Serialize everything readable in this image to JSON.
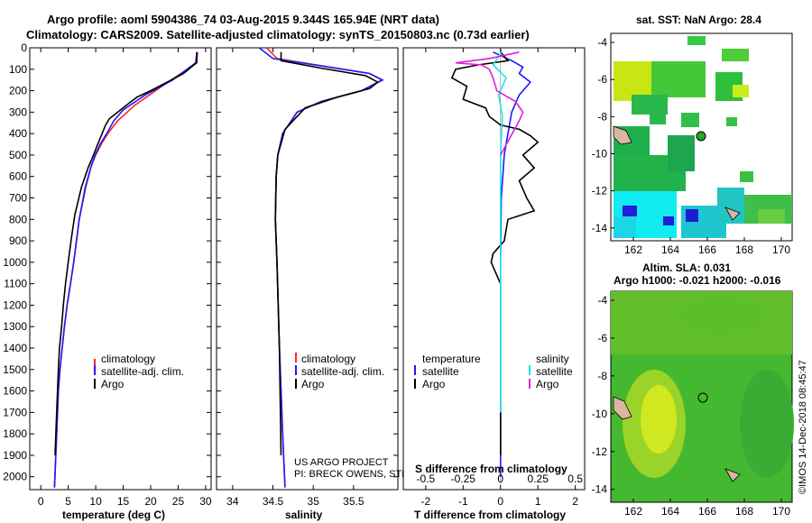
{
  "header": {
    "line1": "Argo profile: aoml 5904386_74 03-Aug-2015 9.344S 165.94E (NRT data)",
    "line2": "Climatology: CARS2009. Satellite-adjusted climatology: synTS_20150803.nc (0.73d earlier)"
  },
  "colors": {
    "climatology": "#ff2222",
    "satellite": "#1a1aff",
    "argo": "#000000",
    "sat_salinity": "#22e0e8",
    "argo_salinity": "#e020d8"
  },
  "legend_temp": [
    "climatology",
    "satellite-adj. clim.",
    "Argo"
  ],
  "legend_sal": [
    "climatology",
    "satellite-adj. clim.",
    "Argo"
  ],
  "legend_diff": {
    "temp_head": "temperature",
    "sal_head": "salinity",
    "temp_items": [
      "satellite",
      "Argo"
    ],
    "sal_items": [
      "satellite",
      "Argo"
    ]
  },
  "credits": [
    "US ARGO PROJECT",
    "PI: BRECK OWENS, STEVE JAYNE, P.E. ROBBINS"
  ],
  "map1": {
    "title": "sat. SST: NaN Argo: 28.4",
    "xticks": [
      "162",
      "164",
      "166",
      "168",
      "170"
    ],
    "yticks": [
      "-4",
      "-6",
      "-8",
      "-10",
      "-12",
      "-14"
    ]
  },
  "map2": {
    "title1": "Altim. SLA: 0.031",
    "title2": "Argo h1000: -0.021 h2000: -0.016",
    "xticks": [
      "162",
      "164",
      "166",
      "168",
      "170"
    ],
    "yticks": [
      "-4",
      "-6",
      "-8",
      "-10",
      "-12",
      "-14"
    ]
  },
  "stamp": "©IMOS 14-Dec-2018 08:45:47",
  "chart_data": [
    {
      "type": "line",
      "xlabel": "temperature (deg C)",
      "ylabel": "",
      "xlim": [
        -2,
        31
      ],
      "ylim": [
        2060,
        0
      ],
      "xticks": [
        0,
        5,
        10,
        15,
        20,
        25,
        30
      ],
      "yticks": [
        0,
        100,
        200,
        300,
        400,
        500,
        600,
        700,
        800,
        900,
        1000,
        1100,
        1200,
        1300,
        1400,
        1500,
        1600,
        1700,
        1800,
        1900,
        2000
      ],
      "series": [
        {
          "name": "climatology",
          "x": [
            28.5,
            28.4,
            22,
            17,
            14,
            12.2,
            11,
            10,
            9.2,
            8.2,
            7,
            6,
            5.4,
            4.8,
            4.3,
            3.9,
            3.5,
            3.2,
            2.9,
            2.5
          ],
          "y": [
            20,
            70,
            180,
            270,
            340,
            400,
            450,
            500,
            550,
            650,
            800,
            1000,
            1100,
            1200,
            1300,
            1400,
            1500,
            1600,
            1800,
            2050
          ]
        },
        {
          "name": "satellite-adj. clim.",
          "x": [
            28.4,
            28.2,
            24,
            19,
            15,
            13.3,
            12,
            10.8,
            9.9,
            9.2,
            8.1,
            7,
            6,
            5.4,
            4.8,
            4.3,
            3.9,
            3.5,
            3.2,
            2.9,
            2.5
          ],
          "y": [
            20,
            70,
            150,
            220,
            290,
            340,
            400,
            450,
            500,
            550,
            650,
            800,
            1000,
            1100,
            1200,
            1300,
            1400,
            1500,
            1600,
            1800,
            2050
          ]
        },
        {
          "name": "Argo",
          "x": [
            28.4,
            28.3,
            26,
            23,
            20,
            17.5,
            16,
            14,
            12.5,
            11.8,
            11,
            10.2,
            9.6,
            8.6,
            7.4,
            6.2,
            5.5,
            5,
            4.5,
            4.1,
            3.8,
            3.4,
            3.2,
            2.9,
            2.6
          ],
          "y": [
            20,
            70,
            120,
            160,
            200,
            230,
            260,
            300,
            330,
            360,
            410,
            460,
            500,
            560,
            650,
            780,
            900,
            1000,
            1100,
            1200,
            1300,
            1400,
            1500,
            1700,
            1900
          ]
        }
      ]
    },
    {
      "type": "line",
      "xlabel": "salinity",
      "ylabel": "",
      "xlim": [
        33.8,
        36.05
      ],
      "ylim": [
        2060,
        0
      ],
      "xticks": [
        34,
        34.5,
        35,
        35.5
      ],
      "yticks": [
        0,
        100,
        200,
        300,
        400,
        500,
        600,
        700,
        800,
        900,
        1000,
        1100,
        1200,
        1300,
        1400,
        1500,
        1600,
        1700,
        1800,
        1900,
        2000
      ],
      "series": [
        {
          "name": "climatology",
          "x": [
            34.42,
            34.55,
            35.2,
            35.7,
            35.85,
            35.6,
            35.1,
            34.8,
            34.62,
            34.56,
            34.54,
            34.53,
            34.55,
            34.58,
            34.62,
            34.65
          ],
          "y": [
            0,
            50,
            90,
            120,
            150,
            200,
            250,
            300,
            400,
            500,
            600,
            800,
            1000,
            1400,
            1800,
            2050
          ]
        },
        {
          "name": "satellite-adj. clim.",
          "x": [
            34.33,
            34.5,
            35.2,
            35.7,
            35.86,
            35.6,
            35.1,
            34.8,
            34.62,
            34.56,
            34.54,
            34.53,
            34.55,
            34.58,
            34.62,
            34.65
          ],
          "y": [
            0,
            50,
            90,
            120,
            150,
            200,
            250,
            300,
            400,
            500,
            600,
            800,
            1000,
            1400,
            1800,
            2050
          ]
        },
        {
          "name": "Argo",
          "x": [
            34.6,
            34.6,
            35.1,
            35.65,
            35.8,
            35.7,
            35.3,
            34.9,
            34.65,
            34.56,
            34.54,
            34.53,
            34.55,
            34.58,
            34.6
          ],
          "y": [
            20,
            60,
            95,
            130,
            160,
            190,
            230,
            280,
            380,
            500,
            600,
            800,
            1000,
            1400,
            1900
          ]
        }
      ]
    },
    {
      "type": "line",
      "xlabel": "T difference from climatology",
      "title": "S difference from climatology",
      "xlim": [
        -2.6,
        2.25
      ],
      "ylim": [
        2060,
        0
      ],
      "xticks": [
        -2,
        -1,
        0,
        1,
        2
      ],
      "top_xticks": [
        -0.5,
        -0.25,
        0,
        0.25,
        0.5
      ],
      "top_xtick_labels": [
        "-0.5",
        "-0.25",
        "0",
        "0.25",
        "0.5"
      ],
      "series": [
        {
          "name": "temperature satellite",
          "x": [
            -0.2,
            0.3,
            0.6,
            0.5,
            0.8,
            0.5,
            0.3,
            0.2,
            0.1,
            0.02,
            0,
            0
          ],
          "y": [
            20,
            60,
            90,
            120,
            160,
            220,
            300,
            400,
            500,
            700,
            1000,
            2000
          ]
        },
        {
          "name": "temperature Argo",
          "x": [
            0,
            0.2,
            -0.6,
            -1.2,
            -1.3,
            -0.9,
            -1.0,
            -0.4,
            -0.3,
            0,
            0.5,
            0.8,
            1.0,
            0.6,
            0.9,
            0.5,
            0.7,
            0.9,
            0.2,
            0.1,
            -0.2,
            -0.25,
            0,
            0
          ],
          "y": [
            20,
            60,
            80,
            100,
            140,
            180,
            240,
            280,
            320,
            360,
            380,
            410,
            440,
            500,
            560,
            620,
            700,
            760,
            800,
            900,
            960,
            1000,
            1100,
            1900
          ]
        },
        {
          "name": "salinity satellite",
          "x": [
            0,
            0.02,
            -0.2,
            0.15,
            -0.05,
            0.05,
            0,
            0,
            0
          ],
          "y": [
            0,
            20,
            80,
            140,
            220,
            320,
            500,
            900,
            1700
          ]
        },
        {
          "name": "salinity Argo",
          "x": [
            0.5,
            -0.3,
            -1.2,
            -0.5,
            -0.3,
            -0.2,
            -0.1,
            0.4,
            0.6,
            0.5,
            0
          ],
          "y": [
            20,
            50,
            70,
            80,
            100,
            140,
            200,
            250,
            300,
            340,
            500
          ]
        }
      ]
    }
  ]
}
